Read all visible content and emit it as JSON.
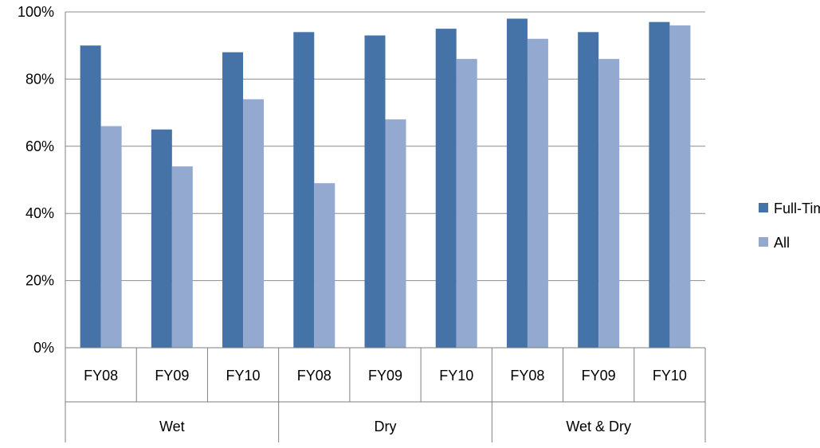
{
  "chart_data": {
    "type": "bar",
    "title": "",
    "xlabel": "",
    "ylabel": "",
    "ylim": [
      0,
      100
    ],
    "y_ticks": [
      "0%",
      "20%",
      "40%",
      "60%",
      "80%",
      "100%"
    ],
    "y_tick_values": [
      0,
      20,
      40,
      60,
      80,
      100
    ],
    "grid": true,
    "legend_position": "right",
    "groups": [
      {
        "label": "Wet",
        "categories": [
          "FY08",
          "FY09",
          "FY10"
        ]
      },
      {
        "label": "Dry",
        "categories": [
          "FY08",
          "FY09",
          "FY10"
        ]
      },
      {
        "label": "Wet & Dry",
        "categories": [
          "FY08",
          "FY09",
          "FY10"
        ]
      }
    ],
    "categories": [
      "FY08",
      "FY09",
      "FY10",
      "FY08",
      "FY09",
      "FY10",
      "FY08",
      "FY09",
      "FY10"
    ],
    "series": [
      {
        "name": "Full-Time",
        "color": "#4572a7",
        "values": [
          90,
          65,
          88,
          94,
          93,
          95,
          98,
          94,
          97
        ]
      },
      {
        "name": "All",
        "color": "#93a9d0",
        "values": [
          66,
          54,
          74,
          49,
          68,
          86,
          92,
          86,
          96
        ]
      }
    ]
  }
}
